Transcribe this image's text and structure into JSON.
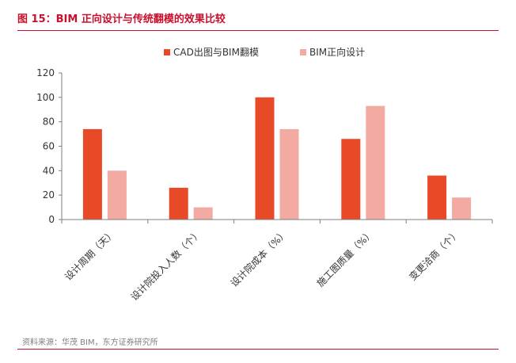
{
  "header": {
    "title": "图 15：BIM 正向设计与传统翻模的效果比较"
  },
  "footer": {
    "source": "资料来源：华茂 BIM，东方证券研究所"
  },
  "colors": {
    "accent": "#c8102e",
    "series_primary": "#e84a27",
    "series_secondary": "#f2aaa2"
  },
  "chart_data": {
    "type": "bar",
    "categories": [
      "设计周期（天）",
      "设计院投入人数（个）",
      "设计院成本（%）",
      "施工图质量（%）",
      "变更洽商（个）"
    ],
    "series": [
      {
        "name": "CAD出图与BIM翻模",
        "values": [
          74,
          26,
          100,
          66,
          36
        ],
        "color": "#e84a27"
      },
      {
        "name": "BIM正向设计",
        "values": [
          40,
          10,
          74,
          93,
          18
        ],
        "color": "#f2aaa2"
      }
    ],
    "ylim": [
      0,
      120
    ],
    "yticks": [
      0,
      20,
      40,
      60,
      80,
      100,
      120
    ],
    "grid": false,
    "legend_position": "top-center"
  }
}
